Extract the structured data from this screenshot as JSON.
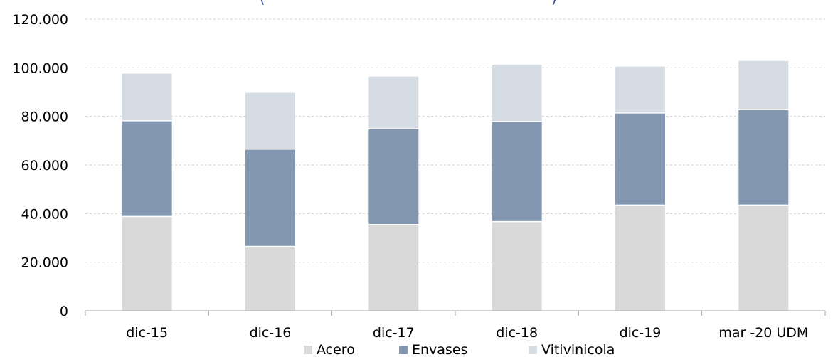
{
  "chart_data": {
    "type": "bar",
    "stacked": true,
    "title": "(",
    "title_right": ")",
    "categories": [
      "dic-15",
      "dic-16",
      "dic-17",
      "dic-18",
      "dic-19",
      "mar -20 UDM"
    ],
    "series": [
      {
        "name": "Acero",
        "color": "#d9d9d9",
        "values": [
          38800,
          26500,
          35500,
          36700,
          43500,
          43500
        ]
      },
      {
        "name": "Envases",
        "color": "#8497b0",
        "values": [
          39400,
          40000,
          39400,
          41200,
          37900,
          39300
        ]
      },
      {
        "name": "Vitivinicola",
        "color": "#d6dce4",
        "values": [
          19400,
          23200,
          21500,
          23400,
          19100,
          20000
        ]
      }
    ],
    "ylim": [
      0,
      120000
    ],
    "yticks": [
      0,
      20000,
      40000,
      60000,
      80000,
      100000,
      120000
    ],
    "ytick_labels": [
      "0",
      "20.000",
      "40.000",
      "60.000",
      "80.000",
      "100.000",
      "120.000"
    ],
    "grid": true,
    "legend": "bottom"
  }
}
